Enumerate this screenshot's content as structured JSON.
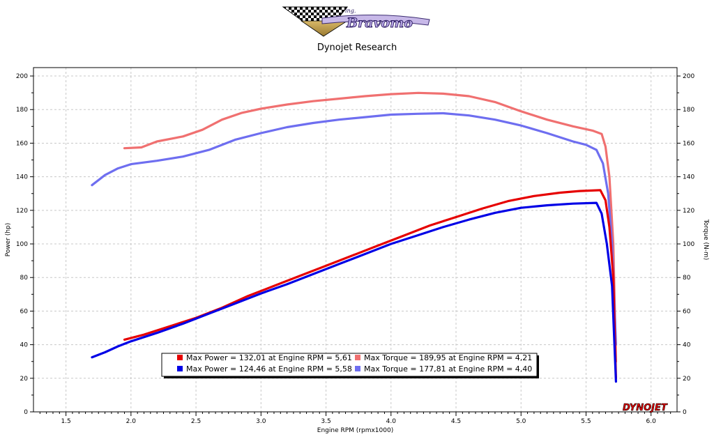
{
  "header": {
    "logo_text": "Bravomo",
    "logo_small_text": "ing.",
    "title": "Dynojet Research"
  },
  "brand_mark": "DYNOJET",
  "chart_data": {
    "type": "line",
    "title": "Dynojet Research",
    "xlabel": "Engine RPM (rpmx1000)",
    "ylabel_left": "Power (hp)",
    "ylabel_right": "Torque (N-m)",
    "xlim": [
      1.25,
      6.2
    ],
    "ylim": [
      0,
      205
    ],
    "x_ticks": [
      1.5,
      2.0,
      2.5,
      3.0,
      3.5,
      4.0,
      4.5,
      5.0,
      5.5,
      6.0
    ],
    "x_tick_labels": [
      "1.5",
      "2.0",
      "2.5",
      "3.0",
      "3.5",
      "4.0",
      "4.5",
      "5.0",
      "5.5",
      "6.0"
    ],
    "y_ticks": [
      0,
      20,
      40,
      60,
      80,
      100,
      120,
      140,
      160,
      180,
      200
    ],
    "y_tick_labels": [
      "0",
      "20",
      "40",
      "60",
      "80",
      "100",
      "120",
      "140",
      "160",
      "180",
      "200"
    ],
    "grid": true,
    "legend_position": "bottom-left",
    "colors": {
      "power_1": "#e60000",
      "torque_1": "#f07070",
      "power_2": "#0000e6",
      "torque_2": "#6e6ef0"
    },
    "legend": [
      {
        "series": "power_1",
        "text": "Max Power = 132,01 at Engine RPM = 5,61"
      },
      {
        "series": "torque_1",
        "text": "Max Torque = 189,95 at Engine RPM = 4,21"
      },
      {
        "series": "power_2",
        "text": "Max Power = 124,46 at Engine RPM = 5,58"
      },
      {
        "series": "torque_2",
        "text": "Max Torque = 177,81 at Engine RPM = 4,40"
      }
    ],
    "series": [
      {
        "id": "torque_1",
        "color": "#f07070",
        "x": [
          1.95,
          2.08,
          2.2,
          2.4,
          2.55,
          2.7,
          2.85,
          3.0,
          3.2,
          3.4,
          3.6,
          3.8,
          4.0,
          4.21,
          4.4,
          4.6,
          4.8,
          5.0,
          5.2,
          5.4,
          5.55,
          5.62,
          5.65,
          5.68,
          5.71,
          5.73
        ],
        "y": [
          157,
          157.5,
          161,
          164,
          168,
          174,
          178,
          180.5,
          183,
          185,
          186.5,
          188,
          189.2,
          189.95,
          189.5,
          188,
          184.5,
          179,
          174,
          170,
          167.5,
          165.5,
          158,
          140,
          100,
          30
        ]
      },
      {
        "id": "torque_2",
        "color": "#6e6ef0",
        "x": [
          1.7,
          1.8,
          1.9,
          2.0,
          2.2,
          2.4,
          2.6,
          2.8,
          3.0,
          3.2,
          3.4,
          3.6,
          3.8,
          4.0,
          4.2,
          4.4,
          4.6,
          4.8,
          5.0,
          5.2,
          5.4,
          5.5,
          5.58,
          5.63,
          5.67,
          5.7,
          5.73
        ],
        "y": [
          135,
          141,
          145,
          147.5,
          149.5,
          152,
          156,
          162,
          166,
          169.5,
          172,
          174,
          175.5,
          177,
          177.5,
          177.81,
          176.5,
          174,
          170.5,
          166,
          161,
          159,
          156,
          148,
          130,
          100,
          40
        ]
      },
      {
        "id": "power_1",
        "color": "#e60000",
        "x": [
          1.95,
          2.1,
          2.3,
          2.5,
          2.7,
          2.9,
          3.1,
          3.3,
          3.5,
          3.7,
          3.9,
          4.1,
          4.3,
          4.5,
          4.7,
          4.9,
          5.1,
          5.3,
          5.45,
          5.61,
          5.65,
          5.68,
          5.71,
          5.73
        ],
        "y": [
          43,
          46,
          51,
          56,
          62,
          69,
          75,
          81,
          87,
          93,
          99,
          105,
          111,
          116,
          121,
          125.5,
          128.5,
          130.5,
          131.5,
          132.01,
          126,
          110,
          80,
          20
        ]
      },
      {
        "id": "power_2",
        "color": "#0000e6",
        "x": [
          1.7,
          1.8,
          1.9,
          2.0,
          2.2,
          2.4,
          2.6,
          2.8,
          3.0,
          3.2,
          3.4,
          3.6,
          3.8,
          4.0,
          4.2,
          4.4,
          4.6,
          4.8,
          5.0,
          5.2,
          5.4,
          5.58,
          5.62,
          5.66,
          5.7,
          5.73
        ],
        "y": [
          32.5,
          35.5,
          39,
          42,
          47,
          52.5,
          58.5,
          64.5,
          70.5,
          76,
          82,
          88,
          94,
          100,
          105,
          110,
          114.5,
          118.5,
          121.5,
          123,
          124,
          124.46,
          118,
          100,
          75,
          18
        ]
      }
    ]
  }
}
